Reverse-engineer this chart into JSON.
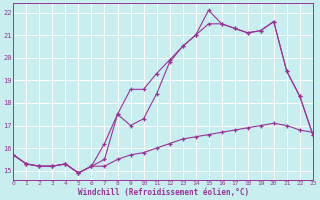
{
  "background_color": "#c8eef0",
  "grid_color": "#aadddd",
  "line_color": "#993399",
  "x_min": 0,
  "x_max": 23,
  "y_min": 14.6,
  "y_max": 22.4,
  "yticks": [
    15,
    16,
    17,
    18,
    19,
    20,
    21,
    22
  ],
  "xticks": [
    0,
    1,
    2,
    3,
    4,
    5,
    6,
    7,
    8,
    9,
    10,
    11,
    12,
    13,
    14,
    15,
    16,
    17,
    18,
    19,
    20,
    21,
    22,
    23
  ],
  "xlabel": "Windchill (Refroidissement éolien,°C)",
  "line1_x": [
    0,
    1,
    2,
    3,
    4,
    5,
    6,
    7,
    8,
    9,
    10,
    11,
    12,
    13,
    14,
    15,
    16,
    17,
    18,
    19,
    20,
    21,
    22,
    23
  ],
  "line1_y": [
    15.7,
    15.3,
    15.2,
    15.2,
    15.3,
    14.9,
    15.2,
    15.2,
    15.5,
    15.7,
    15.8,
    16.0,
    16.2,
    16.4,
    16.5,
    16.6,
    16.7,
    16.8,
    16.9,
    17.0,
    17.1,
    17.0,
    16.8,
    16.7
  ],
  "line2_x": [
    0,
    1,
    2,
    3,
    4,
    5,
    6,
    7,
    8,
    9,
    10,
    11,
    12,
    13,
    14,
    15,
    16,
    17,
    18,
    19,
    20,
    21,
    22,
    23
  ],
  "line2_y": [
    15.7,
    15.3,
    15.2,
    15.2,
    15.3,
    14.9,
    15.2,
    16.2,
    17.5,
    17.0,
    17.3,
    18.4,
    19.8,
    20.5,
    21.0,
    21.5,
    21.5,
    21.3,
    21.1,
    21.2,
    21.6,
    19.4,
    18.3,
    16.6
  ],
  "line3_x": [
    0,
    1,
    2,
    3,
    4,
    5,
    6,
    7,
    8,
    9,
    10,
    11,
    12,
    13,
    14,
    15,
    16,
    17,
    18,
    19,
    20,
    21,
    22,
    23
  ],
  "line3_y": [
    15.7,
    15.3,
    15.2,
    15.2,
    15.3,
    14.9,
    15.2,
    15.5,
    17.5,
    18.6,
    18.6,
    19.3,
    19.9,
    20.5,
    21.0,
    22.1,
    21.5,
    21.3,
    21.1,
    21.2,
    21.6,
    19.4,
    18.3,
    16.6
  ]
}
